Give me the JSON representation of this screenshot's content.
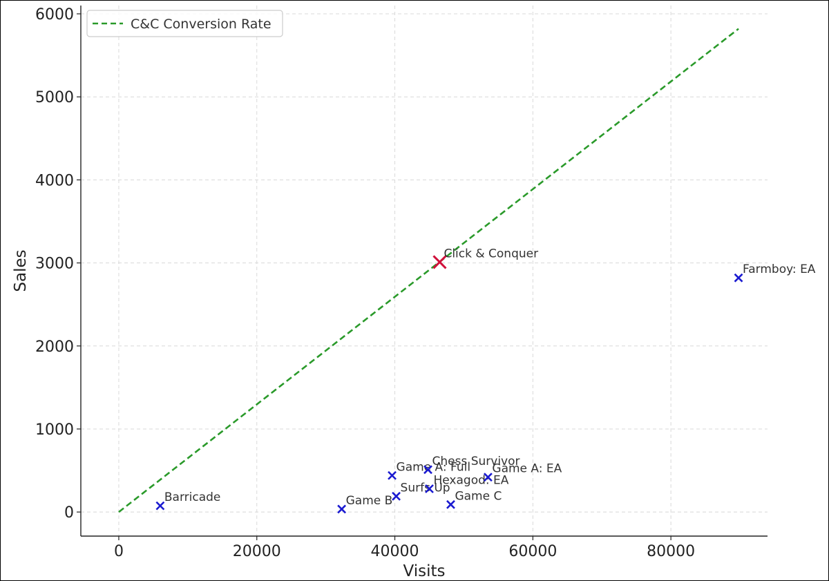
{
  "chart_data": {
    "type": "scatter",
    "xlabel": "Visits",
    "ylabel": "Sales",
    "xlim": [
      -5500,
      94000
    ],
    "ylim": [
      -290,
      6100
    ],
    "xticks": [
      "0",
      "20000",
      "40000",
      "60000",
      "80000"
    ],
    "yticks": [
      "0",
      "1000",
      "2000",
      "3000",
      "4000",
      "5000",
      "6000"
    ],
    "grid": true,
    "legend_position": "top-left",
    "line": {
      "name": "C&C Conversion Rate",
      "style": "dashed",
      "color": "#2a9a2a",
      "x": [
        0,
        89800
      ],
      "y": [
        0,
        5820
      ]
    },
    "highlight": {
      "label": "Click & Conquer",
      "x": 46500,
      "y": 3010,
      "color": "#d0103a"
    },
    "points": [
      {
        "label": "Barricade",
        "x": 6000,
        "y": 75
      },
      {
        "label": "Game B",
        "x": 32300,
        "y": 35
      },
      {
        "label": "Game A: Full",
        "x": 39600,
        "y": 440
      },
      {
        "label": "Surfs Up",
        "x": 40200,
        "y": 190
      },
      {
        "label": "Chess Survivor",
        "x": 44800,
        "y": 510
      },
      {
        "label": "Hexagod: EA",
        "x": 45000,
        "y": 280
      },
      {
        "label": "Game C",
        "x": 48100,
        "y": 90
      },
      {
        "label": "Game A: EA",
        "x": 53500,
        "y": 420
      },
      {
        "label": "Farmboy: EA",
        "x": 89800,
        "y": 2820
      }
    ],
    "point_color": "#1a1ad0"
  }
}
